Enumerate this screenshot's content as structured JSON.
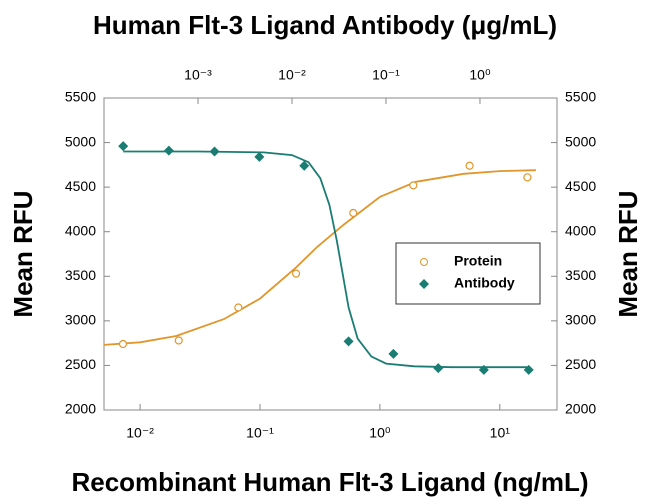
{
  "chart_data": {
    "type": "scatter",
    "title": "Human Flt-3 Ligand Antibody (μg/mL)",
    "x_label": "Recombinant Human Flt-3 Ligand (ng/mL)",
    "y_label": "Mean RFU",
    "y2_label": "Mean RFU",
    "log_x": true,
    "xlim": [
      0.005,
      30
    ],
    "xticks": [
      {
        "value": 0.01,
        "label": "10⁻²"
      },
      {
        "value": 0.1,
        "label": "10⁻¹"
      },
      {
        "value": 1,
        "label": "10⁰"
      },
      {
        "value": 10,
        "label": "10¹"
      }
    ],
    "x2lim": [
      0.0001,
      6.6
    ],
    "x2ticks": [
      {
        "value": 0.001,
        "label": "10⁻³"
      },
      {
        "value": 0.01,
        "label": "10⁻²"
      },
      {
        "value": 0.1,
        "label": "10⁻¹"
      },
      {
        "value": 1,
        "label": "10⁰"
      }
    ],
    "ylim": [
      2000,
      5500
    ],
    "yticks": [
      2000,
      2500,
      3000,
      3500,
      4000,
      4500,
      5000,
      5500
    ],
    "y2lim": [
      2000,
      5500
    ],
    "y2ticks": [
      2000,
      2500,
      3000,
      3500,
      4000,
      4500,
      5000,
      5500
    ],
    "legend": "right",
    "series": [
      {
        "name": "Protein",
        "color": "#e0962a",
        "marker": "circle",
        "x": [
          0.0072,
          0.021,
          0.066,
          0.2,
          0.6,
          1.9,
          5.6,
          17
        ],
        "values": [
          2740,
          2780,
          3150,
          3530,
          4210,
          4520,
          4740,
          4610
        ],
        "curve": {
          "x": [
            0.005,
            0.01,
            0.02,
            0.05,
            0.1,
            0.2,
            0.3,
            0.5,
            1,
            2,
            5,
            10,
            20
          ],
          "values": [
            2730,
            2760,
            2830,
            3020,
            3250,
            3600,
            3830,
            4080,
            4390,
            4560,
            4650,
            4680,
            4690
          ]
        }
      },
      {
        "name": "Antibody",
        "color": "#1a7d73",
        "marker": "diamond",
        "axis": "x2",
        "x": [
          0.00016,
          0.00049,
          0.0015,
          0.0045,
          0.0135,
          0.04,
          0.12,
          0.36,
          1.1,
          3.3
        ],
        "values": [
          4960,
          4910,
          4900,
          4840,
          4740,
          2770,
          2630,
          2470,
          2450,
          2450
        ],
        "curve": {
          "x": [
            0.00016,
            0.001,
            0.005,
            0.01,
            0.015,
            0.02,
            0.025,
            0.03,
            0.035,
            0.04,
            0.05,
            0.07,
            0.1,
            0.2,
            0.5,
            3.3
          ],
          "values": [
            4900,
            4900,
            4890,
            4860,
            4780,
            4600,
            4300,
            3900,
            3500,
            3150,
            2800,
            2600,
            2520,
            2490,
            2480,
            2480
          ]
        }
      }
    ]
  }
}
